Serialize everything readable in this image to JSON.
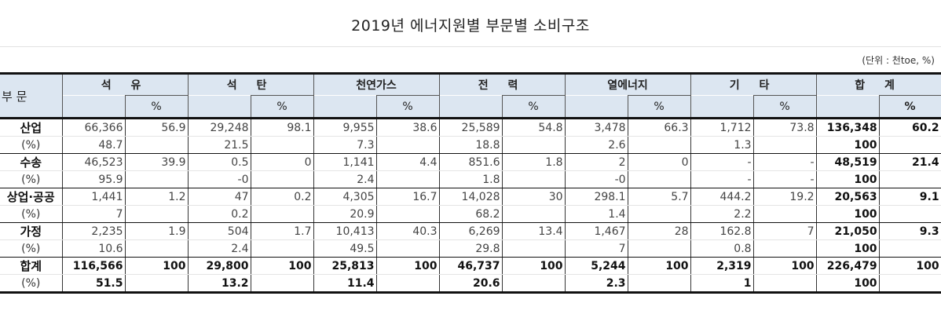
{
  "title": "2019년 에너지원별 부문별 소비구조",
  "unit_label": "(단위 : 천toe, %)",
  "header": {
    "sector_label": "부 문",
    "groups": [
      {
        "label": "석 유",
        "pct": "%"
      },
      {
        "label": "석 탄",
        "pct": "%"
      },
      {
        "label": "천연가스",
        "pct": "%"
      },
      {
        "label": "전 력",
        "pct": "%"
      },
      {
        "label": "열에너지",
        "pct": "%"
      },
      {
        "label": "기 타",
        "pct": "%"
      },
      {
        "label": "합 계",
        "pct": "%"
      }
    ]
  },
  "rows": [
    {
      "label": "산업",
      "sub_label": "(%)",
      "values": [
        "66,366",
        "56.9",
        "29,248",
        "98.1",
        "9,955",
        "38.6",
        "25,589",
        "54.8",
        "3,478",
        "66.3",
        "1,712",
        "73.8",
        "136,348",
        "60.2"
      ],
      "shares": [
        "48.7",
        "",
        "21.5",
        "",
        "7.3",
        "",
        "18.8",
        "",
        "2.6",
        "",
        "1.3",
        "",
        "100",
        ""
      ]
    },
    {
      "label": "수송",
      "sub_label": "(%)",
      "values": [
        "46,523",
        "39.9",
        "0.5",
        "0",
        "1,141",
        "4.4",
        "851.6",
        "1.8",
        "2",
        "0",
        "-",
        "-",
        "48,519",
        "21.4"
      ],
      "shares": [
        "95.9",
        "",
        "-0",
        "",
        "2.4",
        "",
        "1.8",
        "",
        "-0",
        "",
        "-",
        "-",
        "100",
        ""
      ]
    },
    {
      "label": "상업·공공",
      "sub_label": "(%)",
      "values": [
        "1,441",
        "1.2",
        "47",
        "0.2",
        "4,305",
        "16.7",
        "14,028",
        "30",
        "298.1",
        "5.7",
        "444.2",
        "19.2",
        "20,563",
        "9.1"
      ],
      "shares": [
        "7",
        "",
        "0.2",
        "",
        "20.9",
        "",
        "68.2",
        "",
        "1.4",
        "",
        "2.2",
        "",
        "100",
        ""
      ]
    },
    {
      "label": "가정",
      "sub_label": "(%)",
      "values": [
        "2,235",
        "1.9",
        "504",
        "1.7",
        "10,413",
        "40.3",
        "6,269",
        "13.4",
        "1,467",
        "28",
        "162.8",
        "7",
        "21,050",
        "9.3"
      ],
      "shares": [
        "10.6",
        "",
        "2.4",
        "",
        "49.5",
        "",
        "29.8",
        "",
        "7",
        "",
        "0.8",
        "",
        "100",
        ""
      ]
    },
    {
      "label": "합계",
      "sub_label": "(%)",
      "values": [
        "116,566",
        "100",
        "29,800",
        "100",
        "25,813",
        "100",
        "46,737",
        "100",
        "5,244",
        "100",
        "2,319",
        "100",
        "226,479",
        "100"
      ],
      "shares": [
        "51.5",
        "",
        "13.2",
        "",
        "11.4",
        "",
        "20.6",
        "",
        "2.3",
        "",
        "1",
        "",
        "100",
        ""
      ]
    }
  ]
}
